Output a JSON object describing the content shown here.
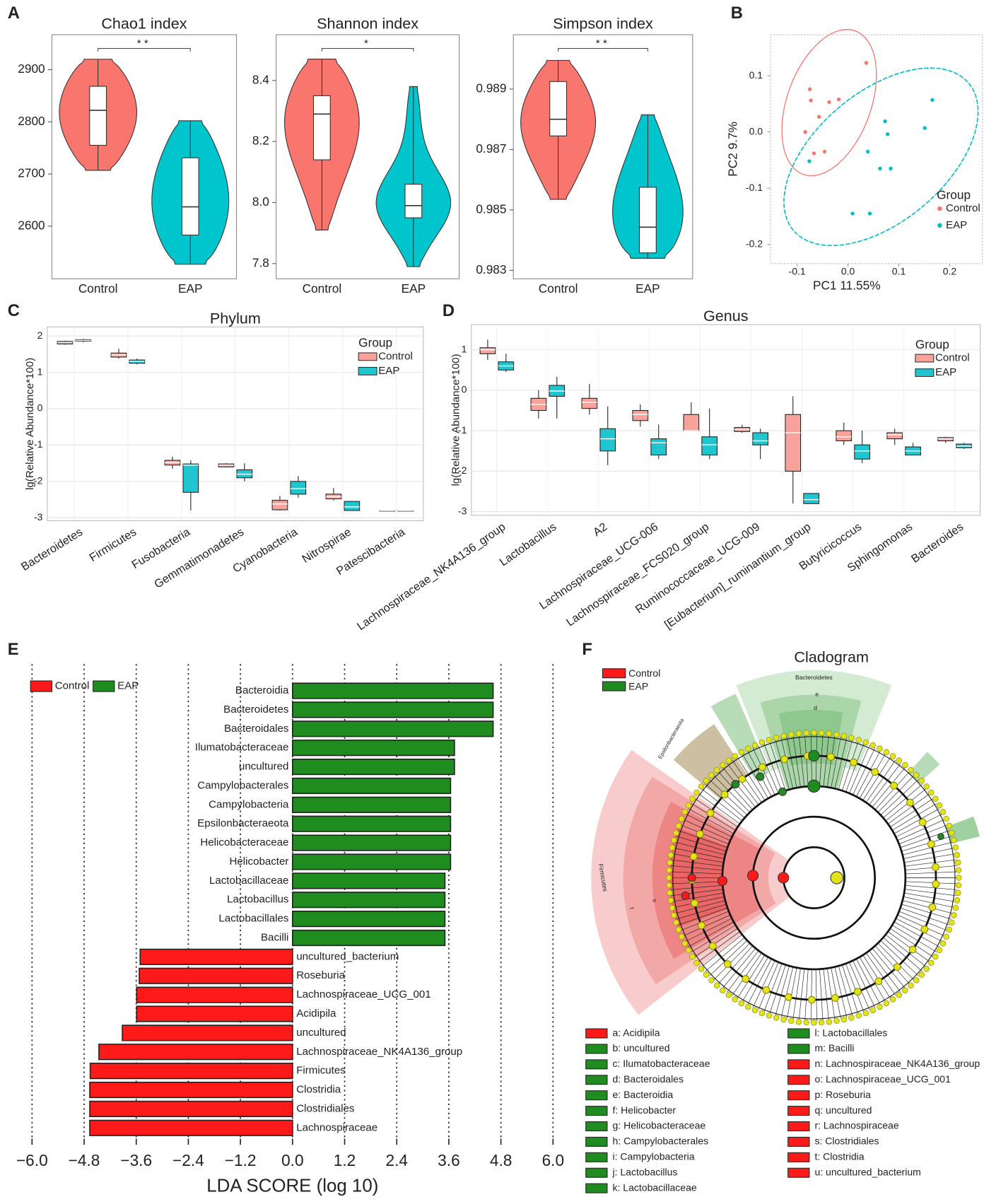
{
  "panel_labels": [
    "A",
    "B",
    "C",
    "D",
    "E",
    "F"
  ],
  "chart_data": [
    {
      "type": "violin",
      "title": "Chao1 index",
      "categories": [
        "Control",
        "EAP"
      ],
      "colors": [
        "#f8766d",
        "#00c5cd"
      ],
      "values": [
        {
          "min": 2707,
          "q1": 2755,
          "median": 2822,
          "q3": 2868,
          "max": 2920
        },
        {
          "min": 2527,
          "q1": 2583,
          "median": 2637,
          "q3": 2731,
          "max": 2802
        }
      ],
      "ylim": [
        2499,
        2967
      ],
      "yticks": [
        2600,
        2700,
        2800,
        2900
      ],
      "significance": "**"
    },
    {
      "type": "violin",
      "title": "Shannon index",
      "categories": [
        "Control",
        "EAP"
      ],
      "colors": [
        "#f8766d",
        "#00c5cd"
      ],
      "values": [
        {
          "min": 7.91,
          "q1": 8.14,
          "median": 8.29,
          "q3": 8.35,
          "max": 8.47
        },
        {
          "min": 7.79,
          "q1": 7.95,
          "median": 7.99,
          "q3": 8.06,
          "max": 8.38
        }
      ],
      "ylim": [
        7.75,
        8.55
      ],
      "yticks": [
        7.8,
        {
          "value": 8,
          "label": "8.0"
        },
        8.2,
        8.4
      ],
      "significance": "*"
    },
    {
      "type": "violin",
      "title": "Simpson index",
      "categories": [
        "Control",
        "EAP"
      ],
      "colors": [
        "#f8766d",
        "#00c5cd"
      ],
      "values": [
        {
          "min": 0.98535,
          "q1": 0.98745,
          "median": 0.988,
          "q3": 0.98925,
          "max": 0.98995
        },
        {
          "min": 0.9834,
          "q1": 0.98358,
          "median": 0.98443,
          "q3": 0.98575,
          "max": 0.98815
        }
      ],
      "ylim": [
        0.98272,
        0.9908
      ],
      "yticks": [
        0.983,
        0.985,
        0.987,
        0.989
      ],
      "significance": "**"
    },
    {
      "type": "scatter",
      "xlabel": "PC1 11.55%",
      "ylabel": "PC2 9.7%",
      "legend_title": "Group",
      "xlim": [
        -0.1525,
        0.2645
      ],
      "ylim": [
        -0.234,
        0.173
      ],
      "xticks": [
        -0.1,
        {
          "value": 0,
          "label": "0.0"
        },
        0.1,
        0.2
      ],
      "yticks": [
        -0.2,
        -0.1,
        {
          "value": 0,
          "label": "0.0"
        },
        0.1
      ],
      "series": [
        {
          "name": "Control",
          "color": "#f8766d",
          "x": [
            0.036,
            -0.075,
            -0.073,
            -0.037,
            -0.018,
            -0.057,
            -0.084,
            -0.067,
            -0.046
          ],
          "y": [
            0.123,
            0.076,
            0.056,
            0.053,
            0.058,
            0.027,
            0,
            -0.038,
            -0.035
          ]
        },
        {
          "name": "EAP",
          "color": "#00bfc4",
          "x": [
            -0.076,
            0.166,
            0.073,
            0.151,
            0.078,
            0.039,
            0.063,
            0.084,
            0.009,
            0.043
          ],
          "y": [
            -0.052,
            0.057,
            0.019,
            0.007,
            -0.004,
            -0.035,
            -0.065,
            -0.065,
            -0.145,
            -0.145
          ]
        }
      ]
    },
    {
      "type": "box",
      "title": "Phylum",
      "ylabel": "lg(Relative Abundance*100)",
      "legend_title": "Group",
      "categories": [
        "Bacteroidetes",
        "Firmicutes",
        "Fusobacteria",
        "Gemmatimonadetes",
        "Cyanobacteria",
        "Nitrospirae",
        "Patescibacteria"
      ],
      "ylim": [
        -3.08,
        2.25
      ],
      "yticks": [
        -3,
        -2,
        -1,
        0,
        1,
        2
      ],
      "series": [
        {
          "name": "Control",
          "color": "#f7a39b",
          "values": [
            {
              "min": 1.76,
              "q1": 1.78,
              "median": 1.82,
              "q3": 1.85,
              "max": 1.87
            },
            {
              "min": 1.38,
              "q1": 1.42,
              "median": 1.48,
              "q3": 1.53,
              "max": 1.65
            },
            {
              "min": -1.65,
              "q1": -1.55,
              "median": -1.48,
              "q3": -1.42,
              "max": -1.32
            },
            {
              "min": -1.62,
              "q1": -1.6,
              "median": -1.55,
              "q3": -1.52,
              "max": -1.5
            },
            {
              "min": -2.8,
              "q1": -2.78,
              "median": -2.62,
              "q3": -2.52,
              "max": -2.4
            },
            {
              "min": -2.52,
              "q1": -2.48,
              "median": -2.42,
              "q3": -2.35,
              "max": -2.18
            },
            {
              "min": -2.8,
              "q1": -2.8,
              "median": -2.8,
              "q3": -2.8,
              "max": -2.8
            }
          ]
        },
        {
          "name": "EAP",
          "color": "#1fc6cf",
          "values": [
            {
              "min": 1.83,
              "q1": 1.86,
              "median": 1.88,
              "q3": 1.9,
              "max": 1.92
            },
            {
              "min": 1.22,
              "q1": 1.25,
              "median": 1.3,
              "q3": 1.34,
              "max": 1.38
            },
            {
              "min": -2.8,
              "q1": -2.3,
              "median": -1.55,
              "q3": -1.52,
              "max": -1.42
            },
            {
              "min": -2,
              "q1": -1.9,
              "median": -1.8,
              "q3": -1.68,
              "max": -1.5
            },
            {
              "min": -2.45,
              "q1": -2.35,
              "median": -2.2,
              "q3": -2,
              "max": -1.85
            },
            {
              "min": -2.8,
              "q1": -2.8,
              "median": -2.7,
              "q3": -2.55,
              "max": -2.55
            },
            {
              "min": -2.8,
              "q1": -2.8,
              "median": -2.8,
              "q3": -2.8,
              "max": -2.8
            }
          ]
        }
      ]
    },
    {
      "type": "box",
      "title": "Genus",
      "ylabel": "lg(Relative Abundance*100)",
      "legend_title": "Group",
      "categories": [
        "Lachnospiraceae_NK4A136_group",
        "Lactobacillus",
        "A2",
        "Lachnospiraceae_UCG-006",
        "Lachnospiraceae_FCS020_group",
        "Ruminococcaceae_UCG-009",
        "[Eubacterium]_ruminantium_group",
        "Butyricicoccus",
        "Sphingomonas",
        "Bacteroides"
      ],
      "ylim": [
        -3.09,
        1.62
      ],
      "yticks": [
        -3,
        -2,
        -1,
        0,
        1
      ],
      "series": [
        {
          "name": "Control",
          "color": "#f7a39b",
          "values": [
            {
              "min": 0.75,
              "q1": 0.9,
              "median": 1,
              "q3": 1.05,
              "max": 1.25
            },
            {
              "min": -0.7,
              "q1": -0.5,
              "median": -0.35,
              "q3": -0.2,
              "max": 0
            },
            {
              "min": -0.6,
              "q1": -0.45,
              "median": -0.3,
              "q3": -0.2,
              "max": 0.15
            },
            {
              "min": -0.9,
              "q1": -0.75,
              "median": -0.6,
              "q3": -0.5,
              "max": -0.35
            },
            {
              "min": -1,
              "q1": -1,
              "median": -1,
              "q3": -0.6,
              "max": -0.3
            },
            {
              "min": -1.05,
              "q1": -1.02,
              "median": -0.97,
              "q3": -0.92,
              "max": -0.85
            },
            {
              "min": -2.8,
              "q1": -2,
              "median": -1.05,
              "q3": -0.6,
              "max": -0.15
            },
            {
              "min": -1.35,
              "q1": -1.25,
              "median": -1.15,
              "q3": -1,
              "max": -0.8
            },
            {
              "min": -1.35,
              "q1": -1.2,
              "median": -1.1,
              "q3": -1.05,
              "max": -0.95
            },
            {
              "min": -1.3,
              "q1": -1.25,
              "median": -1.2,
              "q3": -1.17,
              "max": -1.15
            }
          ]
        },
        {
          "name": "EAP",
          "color": "#1fc6cf",
          "values": [
            {
              "min": 0.45,
              "q1": 0.5,
              "median": 0.6,
              "q3": 0.7,
              "max": 0.9
            },
            {
              "min": -0.7,
              "q1": -0.15,
              "median": -0.02,
              "q3": 0.12,
              "max": 0.33
            },
            {
              "min": -1.85,
              "q1": -1.5,
              "median": -1.2,
              "q3": -0.95,
              "max": -0.4
            },
            {
              "min": -1.7,
              "q1": -1.6,
              "median": -1.3,
              "q3": -1.2,
              "max": -0.85
            },
            {
              "min": -1.7,
              "q1": -1.6,
              "median": -1.35,
              "q3": -1.15,
              "max": -0.45
            },
            {
              "min": -1.7,
              "q1": -1.35,
              "median": -1.25,
              "q3": -1.05,
              "max": -0.95
            },
            {
              "min": -2.8,
              "q1": -2.8,
              "median": -2.7,
              "q3": -2.55,
              "max": -2.55
            },
            {
              "min": -1.8,
              "q1": -1.7,
              "median": -1.5,
              "q3": -1.35,
              "max": -1
            },
            {
              "min": -1.6,
              "q1": -1.6,
              "median": -1.5,
              "q3": -1.4,
              "max": -1.3
            },
            {
              "min": -1.45,
              "q1": -1.42,
              "median": -1.38,
              "q3": -1.33,
              "max": -1.3
            }
          ]
        }
      ]
    },
    {
      "type": "barh",
      "xlabel": "LDA SCORE (log 10)",
      "xlim": [
        -6,
        6
      ],
      "grid": true,
      "xticks": [
        {
          "value": -6,
          "label": "−6.0"
        },
        {
          "value": -4.8,
          "label": "−4.8"
        },
        {
          "value": -3.6,
          "label": "−3.6"
        },
        {
          "value": -2.4,
          "label": "−2.4"
        },
        {
          "value": -1.2,
          "label": "−1.2"
        },
        {
          "value": 0,
          "label": "0.0"
        },
        1.2,
        2.4,
        3.6,
        4.8,
        {
          "value": 6,
          "label": "6.0"
        }
      ],
      "series": [
        {
          "name": "EAP",
          "color": "#1f8c1f",
          "categories": [
            "Bacteroidia",
            "Bacteroidetes",
            "Bacteroidales",
            "Ilumatobacteraceae",
            "uncultured",
            "Campylobacterales",
            "Campylobacteria",
            "Epsilonbacteraeota",
            "Helicobacteraceae",
            "Helicobacter",
            "Lactobacillaceae",
            "Lactobacillus",
            "Lactobacillales",
            "Bacilli"
          ],
          "values": [
            4.62,
            4.62,
            4.62,
            3.73,
            3.73,
            3.64,
            3.64,
            3.64,
            3.64,
            3.64,
            3.51,
            3.51,
            3.51,
            3.51
          ]
        },
        {
          "name": "Control",
          "color": "#ff1a1a",
          "categories": [
            "uncultured_bacterium",
            "Roseburia",
            "Lachnospiraceae_UCG_001",
            "Acidipila",
            "uncultured",
            "Lachnospiraceae_NK4A136_group",
            "Firmicutes",
            "Clostridia",
            "Clostridiales",
            "Lachnospiraceae"
          ],
          "values": [
            -3.51,
            -3.53,
            -3.59,
            -3.59,
            -3.92,
            -4.46,
            -4.66,
            -4.67,
            -4.67,
            -4.67
          ]
        }
      ]
    }
  ],
  "cladogram": {
    "title": "Cladogram",
    "groups": [
      {
        "name": "Control",
        "color": "#ff1a1a"
      },
      {
        "name": "EAP",
        "color": "#1f8c1f"
      }
    ],
    "clades": [
      "Bacteroidetes",
      "Epsilonbacteraeota",
      "Firmicutes",
      "e",
      "d",
      "t",
      "s"
    ],
    "legend": [
      {
        "label": "a: Acidipila",
        "color": "#ff1a1a"
      },
      {
        "label": "b: uncultured",
        "color": "#1f8c1f"
      },
      {
        "label": "c: Ilumatobacteraceae",
        "color": "#1f8c1f"
      },
      {
        "label": "d: Bacteroidales",
        "color": "#1f8c1f"
      },
      {
        "label": "e: Bacteroidia",
        "color": "#1f8c1f"
      },
      {
        "label": "f: Helicobacter",
        "color": "#1f8c1f"
      },
      {
        "label": "g: Helicobacteraceae",
        "color": "#1f8c1f"
      },
      {
        "label": "h: Campylobacterales",
        "color": "#1f8c1f"
      },
      {
        "label": "i: Campylobacteria",
        "color": "#1f8c1f"
      },
      {
        "label": "j: Lactobacillus",
        "color": "#1f8c1f"
      },
      {
        "label": "k: Lactobacillaceae",
        "color": "#1f8c1f"
      },
      {
        "label": "l: Lactobacillales",
        "color": "#1f8c1f"
      },
      {
        "label": "m: Bacilli",
        "color": "#1f8c1f"
      },
      {
        "label": "n: Lachnospiraceae_NK4A136_group",
        "color": "#ff1a1a"
      },
      {
        "label": "o: Lachnospiraceae_UCG_001",
        "color": "#ff1a1a"
      },
      {
        "label": "p: Roseburia",
        "color": "#ff1a1a"
      },
      {
        "label": "q: uncultured",
        "color": "#ff1a1a"
      },
      {
        "label": "r: Lachnospiraceae",
        "color": "#ff1a1a"
      },
      {
        "label": "s: Clostridiales",
        "color": "#ff1a1a"
      },
      {
        "label": "t: Clostridia",
        "color": "#ff1a1a"
      },
      {
        "label": "u: uncultured_bacterium",
        "color": "#ff1a1a"
      }
    ]
  }
}
